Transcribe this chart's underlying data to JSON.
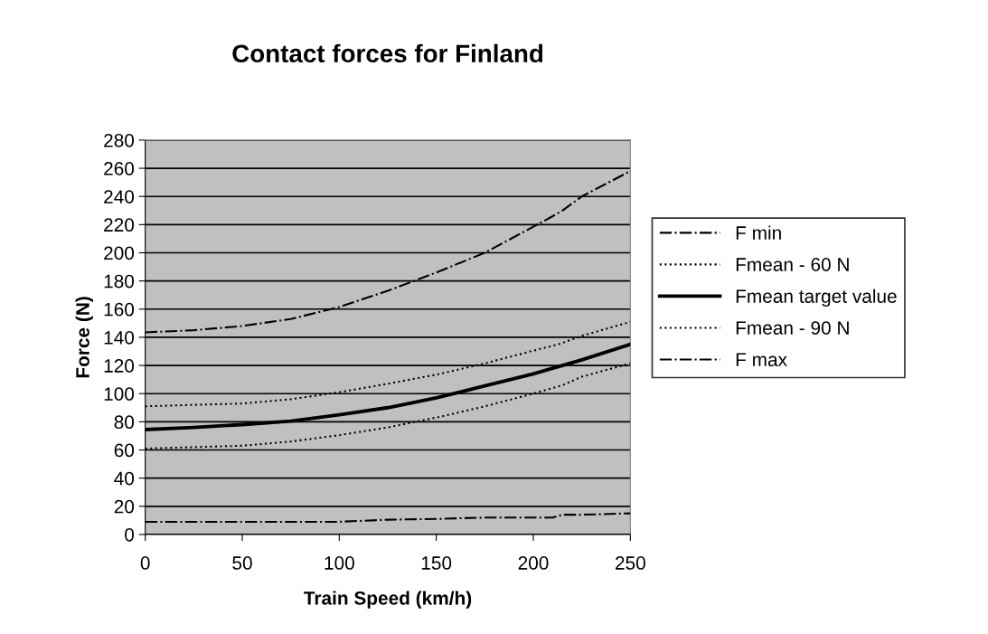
{
  "chart_data": {
    "type": "line",
    "title": "Contact forces for Finland",
    "xlabel": "Train Speed (km/h)",
    "ylabel": "Force (N)",
    "x": [
      0,
      25,
      50,
      75,
      100,
      125,
      150,
      175,
      200,
      210,
      215,
      225,
      250
    ],
    "series": [
      {
        "name": "F min",
        "color": "#000000",
        "line_style": "dashdot",
        "values": [
          9,
          9,
          9,
          9,
          9,
          10.5,
          11,
          12,
          12,
          12,
          14,
          14,
          15
        ]
      },
      {
        "name": "Fmean - 60 N",
        "color": "#000000",
        "line_style": "dotted",
        "values": [
          61,
          62,
          63,
          66,
          70.5,
          76,
          83,
          91,
          100,
          104,
          106,
          112,
          121.5
        ]
      },
      {
        "name": "Fmean target value",
        "color": "#000000",
        "line_style": "solid",
        "values": [
          74.5,
          76,
          78,
          80.5,
          85,
          90,
          97,
          105.5,
          114,
          118,
          120,
          124,
          135
        ]
      },
      {
        "name": "Fmean - 90 N",
        "color": "#000000",
        "line_style": "dotted",
        "values": [
          91,
          92,
          93,
          96,
          101,
          107,
          113.5,
          121.5,
          130.5,
          134,
          136,
          141,
          151
        ]
      },
      {
        "name": "F max",
        "color": "#000000",
        "line_style": "dashdot",
        "values": [
          143.5,
          145,
          148,
          153,
          161.5,
          173,
          186,
          200,
          218.5,
          226,
          230,
          240,
          258
        ]
      }
    ],
    "xlim": [
      0,
      250
    ],
    "xticks": [
      0,
      50,
      100,
      150,
      200,
      250
    ],
    "ylim": [
      0,
      280
    ],
    "yticks": [
      0,
      20,
      40,
      60,
      80,
      100,
      120,
      140,
      160,
      180,
      200,
      220,
      240,
      260,
      280
    ],
    "grid": "y",
    "legend": "right",
    "marker": "none"
  }
}
